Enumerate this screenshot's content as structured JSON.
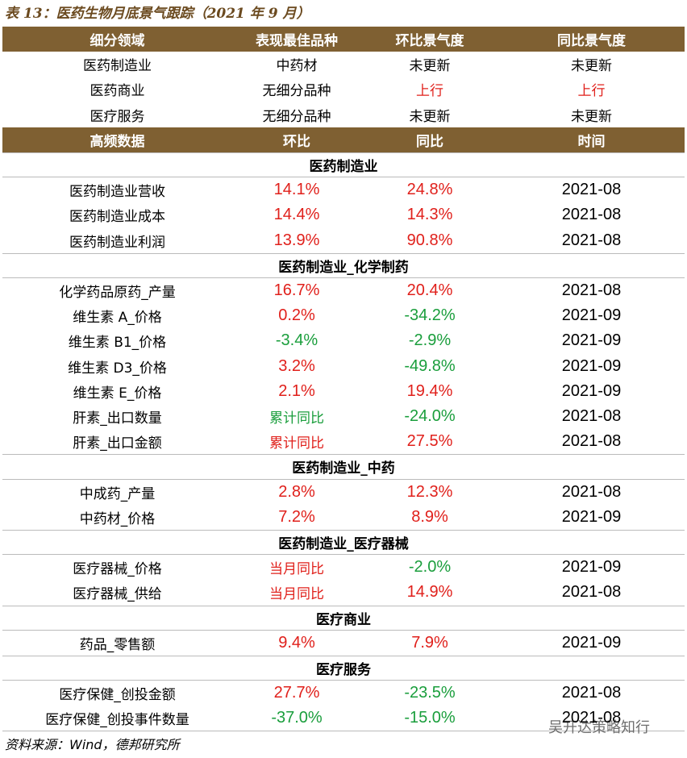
{
  "title": "表 13：医药生物月底景气跟踪（2021 年 9 月）",
  "summary": {
    "header": [
      "细分领域",
      "表现最佳品种",
      "环比景气度",
      "同比景气度"
    ],
    "rows": [
      [
        "医药制造业",
        "中药材",
        "未更新",
        "未更新"
      ],
      [
        "医药商业",
        "无细分品种",
        {
          "text": "上行",
          "color": "#e0201b"
        },
        {
          "text": "上行",
          "color": "#e0201b"
        }
      ],
      [
        "医疗服务",
        "无细分品种",
        "未更新",
        "未更新"
      ]
    ]
  },
  "high_frequency": {
    "header": [
      "高频数据",
      "环比",
      "同比",
      "时间"
    ],
    "sections": [
      {
        "title": "医药制造业",
        "rows": [
          [
            "医药制造业营收",
            {
              "text": "14.1%",
              "color": "#e0201b"
            },
            {
              "text": "24.8%",
              "color": "#e0201b"
            },
            "2021-08"
          ],
          [
            "医药制造业成本",
            {
              "text": "14.4%",
              "color": "#e0201b"
            },
            {
              "text": "14.3%",
              "color": "#e0201b"
            },
            "2021-08"
          ],
          [
            "医药制造业利润",
            {
              "text": "13.9%",
              "color": "#e0201b"
            },
            {
              "text": "90.8%",
              "color": "#e0201b"
            },
            "2021-08"
          ]
        ]
      },
      {
        "title": "医药制造业_化学制药",
        "rows": [
          [
            "化学药品原药_产量",
            {
              "text": "16.7%",
              "color": "#e0201b"
            },
            {
              "text": "20.4%",
              "color": "#e0201b"
            },
            "2021-08"
          ],
          [
            "维生素 A_价格",
            {
              "text": "0.2%",
              "color": "#e0201b"
            },
            {
              "text": "-34.2%",
              "color": "#1a9e3c"
            },
            "2021-09"
          ],
          [
            "维生素 B1_价格",
            {
              "text": "-3.4%",
              "color": "#1a9e3c"
            },
            {
              "text": "-2.9%",
              "color": "#1a9e3c"
            },
            "2021-09"
          ],
          [
            "维生素 D3_价格",
            {
              "text": "3.2%",
              "color": "#e0201b"
            },
            {
              "text": "-49.8%",
              "color": "#1a9e3c"
            },
            "2021-09"
          ],
          [
            "维生素 E_价格",
            {
              "text": "2.1%",
              "color": "#e0201b"
            },
            {
              "text": "19.4%",
              "color": "#e0201b"
            },
            "2021-09"
          ],
          [
            "肝素_出口数量",
            {
              "text": "累计同比",
              "color": "#1a9e3c"
            },
            {
              "text": "-24.0%",
              "color": "#1a9e3c"
            },
            "2021-08"
          ],
          [
            "肝素_出口金额",
            {
              "text": "累计同比",
              "color": "#e0201b"
            },
            {
              "text": "27.5%",
              "color": "#e0201b"
            },
            "2021-08"
          ]
        ]
      },
      {
        "title": "医药制造业_中药",
        "rows": [
          [
            "中成药_产量",
            {
              "text": "2.8%",
              "color": "#e0201b"
            },
            {
              "text": "12.3%",
              "color": "#e0201b"
            },
            "2021-08"
          ],
          [
            "中药材_价格",
            {
              "text": "7.2%",
              "color": "#e0201b"
            },
            {
              "text": "8.9%",
              "color": "#e0201b"
            },
            "2021-09"
          ]
        ]
      },
      {
        "title": "医药制造业_医疗器械",
        "rows": [
          [
            "医疗器械_价格",
            {
              "text": "当月同比",
              "color": "#e0201b"
            },
            {
              "text": "-2.0%",
              "color": "#1a9e3c"
            },
            "2021-09"
          ],
          [
            "医疗器械_供给",
            {
              "text": "当月同比",
              "color": "#e0201b"
            },
            {
              "text": "14.9%",
              "color": "#e0201b"
            },
            "2021-08"
          ]
        ]
      },
      {
        "title": "医疗商业",
        "rows": [
          [
            "药品_零售额",
            {
              "text": "9.4%",
              "color": "#e0201b"
            },
            {
              "text": "7.9%",
              "color": "#e0201b"
            },
            "2021-09"
          ]
        ]
      },
      {
        "title": "医疗服务",
        "rows": [
          [
            "医疗保健_创投金额",
            {
              "text": "27.7%",
              "color": "#e0201b"
            },
            {
              "text": "-23.5%",
              "color": "#1a9e3c"
            },
            "2021-08"
          ],
          [
            "医疗保健_创投事件数量",
            {
              "text": "-37.0%",
              "color": "#1a9e3c"
            },
            {
              "text": "-15.0%",
              "color": "#1a9e3c"
            },
            "2021-08"
          ]
        ]
      }
    ]
  },
  "source": "资料来源：Wind，德邦研究所",
  "watermark": "吴开达策略知行"
}
